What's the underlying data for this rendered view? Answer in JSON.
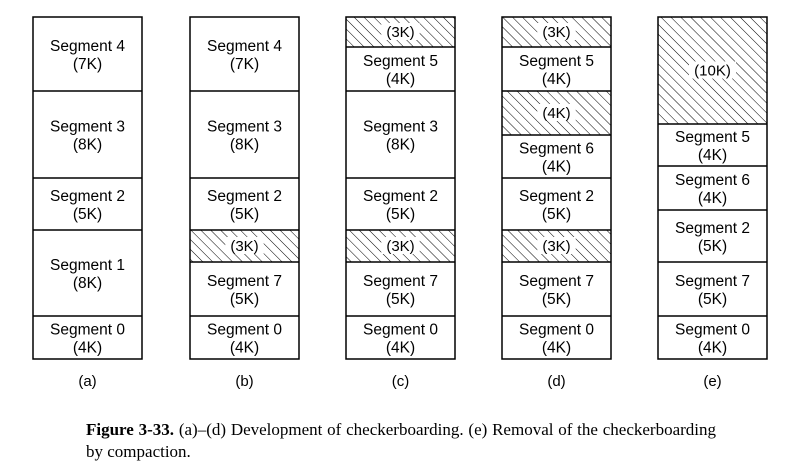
{
  "diagram": {
    "columns": [
      {
        "label": "(a)",
        "blocks": [
          {
            "kind": "segment",
            "name": "Segment 4",
            "size": "(7K)"
          },
          {
            "kind": "segment",
            "name": "Segment 3",
            "size": "(8K)"
          },
          {
            "kind": "segment",
            "name": "Segment 2",
            "size": "(5K)"
          },
          {
            "kind": "segment",
            "name": "Segment 1",
            "size": "(8K)"
          },
          {
            "kind": "segment",
            "name": "Segment 0",
            "size": "(4K)"
          }
        ]
      },
      {
        "label": "(b)",
        "blocks": [
          {
            "kind": "segment",
            "name": "Segment 4",
            "size": "(7K)"
          },
          {
            "kind": "segment",
            "name": "Segment 3",
            "size": "(8K)"
          },
          {
            "kind": "segment",
            "name": "Segment 2",
            "size": "(5K)"
          },
          {
            "kind": "hole",
            "size": "(3K)"
          },
          {
            "kind": "segment",
            "name": "Segment 7",
            "size": "(5K)"
          },
          {
            "kind": "segment",
            "name": "Segment 0",
            "size": "(4K)"
          }
        ]
      },
      {
        "label": "(c)",
        "blocks": [
          {
            "kind": "hole",
            "size": "(3K)"
          },
          {
            "kind": "segment",
            "name": "Segment 5",
            "size": "(4K)"
          },
          {
            "kind": "segment",
            "name": "Segment 3",
            "size": "(8K)"
          },
          {
            "kind": "segment",
            "name": "Segment 2",
            "size": "(5K)"
          },
          {
            "kind": "hole",
            "size": "(3K)"
          },
          {
            "kind": "segment",
            "name": "Segment 7",
            "size": "(5K)"
          },
          {
            "kind": "segment",
            "name": "Segment 0",
            "size": "(4K)"
          }
        ]
      },
      {
        "label": "(d)",
        "blocks": [
          {
            "kind": "hole",
            "size": "(3K)"
          },
          {
            "kind": "segment",
            "name": "Segment 5",
            "size": "(4K)"
          },
          {
            "kind": "hole",
            "size": "(4K)"
          },
          {
            "kind": "segment",
            "name": "Segment 6",
            "size": "(4K)"
          },
          {
            "kind": "segment",
            "name": "Segment 2",
            "size": "(5K)"
          },
          {
            "kind": "hole",
            "size": "(3K)"
          },
          {
            "kind": "segment",
            "name": "Segment 7",
            "size": "(5K)"
          },
          {
            "kind": "segment",
            "name": "Segment 0",
            "size": "(4K)"
          }
        ]
      },
      {
        "label": "(e)",
        "blocks": [
          {
            "kind": "hole",
            "size": "(10K)"
          },
          {
            "kind": "segment",
            "name": "Segment 5",
            "size": "(4K)"
          },
          {
            "kind": "segment",
            "name": "Segment 6",
            "size": "(4K)"
          },
          {
            "kind": "segment",
            "name": "Segment 2",
            "size": "(5K)"
          },
          {
            "kind": "segment",
            "name": "Segment 7",
            "size": "(5K)"
          },
          {
            "kind": "segment",
            "name": "Segment 0",
            "size": "(4K)"
          }
        ]
      }
    ]
  },
  "caption": {
    "figure_label": "Figure 3-33.",
    "text": "(a)–(d) Development of checkerboarding. (e) Removal of the checkerboarding by compaction."
  }
}
